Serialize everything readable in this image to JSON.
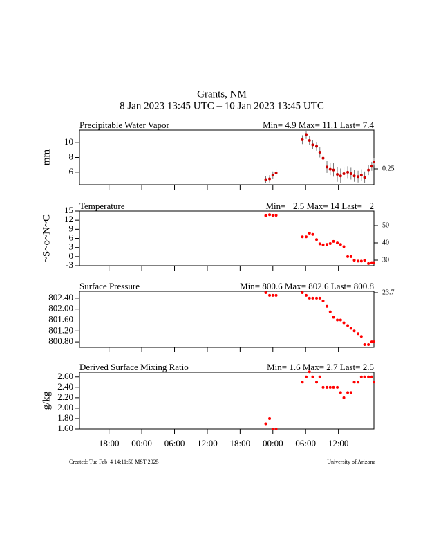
{
  "title": "Grants, NM",
  "subtitle": "8 Jan 2023 13:45 UTC – 10 Jan 2023 13:45 UTC",
  "footer_left": "Created: Tue Feb  4 14:11:50 MST 2025",
  "footer_right": "University of Arizona",
  "chart_data": [
    {
      "type": "errorbar",
      "title": "Precipitable Water Vapor",
      "stats": "Min= 4.9 Max= 11.1 Last= 7.4",
      "y_label": "mm",
      "annotation": "0.25",
      "color": "#cc0000",
      "x": [
        46.7,
        47.4,
        48.0,
        48.6,
        53.4,
        54.1,
        54.7,
        55.3,
        56.0,
        56.6,
        57.2,
        57.9,
        58.5,
        59.1,
        59.8,
        60.4,
        61.0,
        61.7,
        62.3,
        62.9,
        63.6,
        64.2,
        64.8,
        65.5,
        66.1,
        66.5
      ],
      "values": [
        5.0,
        5.1,
        5.6,
        5.9,
        10.4,
        11.1,
        10.3,
        9.7,
        9.5,
        8.7,
        7.9,
        6.7,
        6.4,
        6.3,
        5.7,
        5.5,
        5.8,
        6.0,
        5.8,
        5.5,
        5.4,
        5.6,
        5.3,
        6.3,
        6.8,
        7.4
      ],
      "errors": [
        0.5,
        0.5,
        0.5,
        0.5,
        0.6,
        0.6,
        0.6,
        0.6,
        0.6,
        0.7,
        0.8,
        0.8,
        0.8,
        0.9,
        1.0,
        1.0,
        0.9,
        0.8,
        0.8,
        0.8,
        0.8,
        0.8,
        0.8,
        0.7,
        0.6,
        0.5
      ],
      "xlim": [
        12.6,
        66.5
      ],
      "ylim": [
        4.3,
        11.7
      ],
      "yticks": [
        6,
        8,
        10
      ]
    },
    {
      "type": "scatter",
      "title": "Temperature",
      "stats": "Min= −2.5 Max= 14 Last= −2",
      "y_label": "~S~o~N~C",
      "color": "#ff0000",
      "x": [
        46.7,
        47.4,
        48.0,
        48.6,
        53.4,
        54.1,
        54.7,
        55.3,
        56.0,
        56.6,
        57.2,
        57.9,
        58.5,
        59.1,
        59.8,
        60.4,
        61.0,
        61.7,
        62.3,
        62.9,
        63.6,
        64.2,
        64.8,
        65.5,
        66.1,
        66.5
      ],
      "values": [
        13.5,
        13.8,
        13.6,
        13.6,
        6.5,
        6.5,
        7.7,
        7.3,
        5.6,
        4.2,
        3.9,
        4.0,
        4.3,
        5.0,
        4.5,
        4.0,
        3.3,
        0,
        0,
        -1.2,
        -1.5,
        -1.5,
        -1.2,
        -2.3,
        -2,
        -2
      ],
      "xlim": [
        12.6,
        66.5
      ],
      "ylim": [
        -3,
        15
      ],
      "yticks": [
        -3,
        0,
        3,
        6,
        9,
        12,
        15
      ],
      "y2lim": [
        26.8,
        58.4
      ],
      "y2ticks": [
        30,
        40,
        50
      ]
    },
    {
      "type": "scatter",
      "title": "Surface Pressure",
      "stats": "Min= 800.6 Max= 802.6 Last= 800.8",
      "annotation": "23.7",
      "color": "#ff0000",
      "x": [
        46.7,
        47.4,
        48.0,
        48.6,
        53.4,
        54.1,
        54.7,
        55.3,
        56.0,
        56.6,
        57.2,
        57.9,
        58.5,
        59.1,
        59.8,
        60.4,
        61.0,
        61.7,
        62.3,
        62.9,
        63.6,
        64.2,
        64.8,
        65.5,
        66.1,
        66.5
      ],
      "values": [
        802.6,
        802.5,
        802.5,
        802.5,
        802.6,
        802.5,
        802.4,
        802.4,
        802.4,
        802.4,
        802.3,
        802.1,
        801.9,
        801.7,
        801.6,
        801.6,
        801.5,
        801.4,
        801.3,
        801.2,
        801.1,
        801.0,
        800.7,
        800.7,
        800.8,
        800.8
      ],
      "xlim": [
        12.6,
        66.5
      ],
      "ylim": [
        800.6,
        802.65
      ],
      "yticks": [
        {
          "value": 800.8,
          "label": "800.80"
        },
        {
          "value": 801.2,
          "label": "801.20"
        },
        {
          "value": 801.6,
          "label": "801.60"
        },
        {
          "value": 802.0,
          "label": "802.00"
        },
        {
          "value": 802.4,
          "label": "802.40"
        }
      ]
    },
    {
      "type": "scatter",
      "title": "Derived Surface Mixing Ratio",
      "stats": "Min= 1.6 Max= 2.7 Last= 2.5",
      "y_label": "g/kg",
      "color": "#ff0000",
      "x": [
        46.7,
        47.4,
        48.0,
        48.6,
        53.4,
        54.1,
        54.7,
        55.3,
        56.0,
        56.6,
        57.2,
        57.9,
        58.5,
        59.1,
        59.8,
        60.4,
        61.0,
        61.7,
        62.3,
        62.9,
        63.6,
        64.2,
        64.8,
        65.5,
        66.1,
        66.5
      ],
      "values": [
        1.7,
        1.8,
        1.6,
        1.6,
        2.5,
        2.6,
        2.7,
        2.6,
        2.5,
        2.6,
        2.4,
        2.4,
        2.4,
        2.4,
        2.4,
        2.3,
        2.2,
        2.3,
        2.3,
        2.5,
        2.5,
        2.6,
        2.6,
        2.6,
        2.6,
        2.5
      ],
      "xlim": [
        12.6,
        66.5
      ],
      "ylim": [
        1.6,
        2.69
      ],
      "yticks": [
        {
          "value": 1.6,
          "label": "1.60"
        },
        {
          "value": 1.8,
          "label": "1.80"
        },
        {
          "value": 2.0,
          "label": "2.00"
        },
        {
          "value": 2.2,
          "label": "2.20"
        },
        {
          "value": 2.4,
          "label": "2.40"
        },
        {
          "value": 2.6,
          "label": "2.60"
        }
      ],
      "xticks": [
        {
          "value": 18,
          "label": "18:00"
        },
        {
          "value": 24,
          "label": "00:00"
        },
        {
          "value": 30,
          "label": "06:00"
        },
        {
          "value": 36,
          "label": "12:00"
        },
        {
          "value": 42,
          "label": "18:00"
        },
        {
          "value": 48,
          "label": "00:00"
        },
        {
          "value": 54,
          "label": "06:00"
        },
        {
          "value": 60,
          "label": "12:00"
        }
      ]
    }
  ]
}
